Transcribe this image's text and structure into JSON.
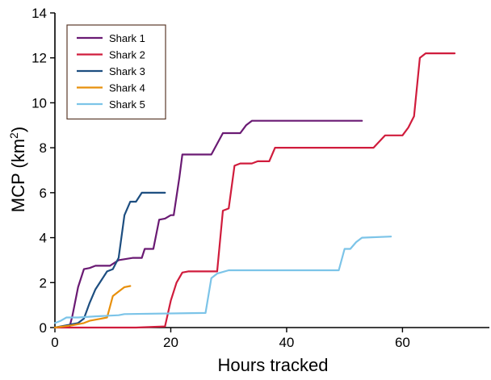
{
  "chart_data": {
    "type": "line",
    "title": "",
    "xlabel": "Hours tracked",
    "ylabel": "MCP (km²)",
    "ylabel_main": "MCP (km",
    "ylabel_sup": "2",
    "ylabel_close": ")",
    "xlim": [
      0,
      75
    ],
    "ylim": [
      0,
      14
    ],
    "xticks": [
      0,
      20,
      40,
      60
    ],
    "yticks": [
      0,
      2,
      4,
      6,
      8,
      10,
      12,
      14
    ],
    "grid": false,
    "legend_position": "top-left",
    "series": [
      {
        "name": "Shark 1",
        "color": "#6a1a73",
        "points": [
          [
            2.5,
            0
          ],
          [
            3,
            0.5
          ],
          [
            4,
            1.8
          ],
          [
            5,
            2.6
          ],
          [
            6,
            2.65
          ],
          [
            7,
            2.75
          ],
          [
            9.5,
            2.75
          ],
          [
            11,
            3.0
          ],
          [
            13.5,
            3.1
          ],
          [
            15,
            3.1
          ],
          [
            15.5,
            3.5
          ],
          [
            17,
            3.5
          ],
          [
            18,
            4.8
          ],
          [
            19,
            4.85
          ],
          [
            20,
            5.0
          ],
          [
            20.5,
            5.0
          ],
          [
            21.5,
            6.7
          ],
          [
            22,
            7.7
          ],
          [
            27,
            7.7
          ],
          [
            29,
            8.65
          ],
          [
            32,
            8.65
          ],
          [
            33,
            9.0
          ],
          [
            34,
            9.2
          ],
          [
            53,
            9.2
          ]
        ]
      },
      {
        "name": "Shark 2",
        "color": "#d01c3c",
        "points": [
          [
            0,
            0
          ],
          [
            14,
            0
          ],
          [
            19,
            0.05
          ],
          [
            20,
            1.2
          ],
          [
            21,
            2.0
          ],
          [
            22,
            2.45
          ],
          [
            23,
            2.5
          ],
          [
            28,
            2.5
          ],
          [
            29,
            5.2
          ],
          [
            30,
            5.3
          ],
          [
            31,
            7.2
          ],
          [
            32,
            7.3
          ],
          [
            34,
            7.3
          ],
          [
            35,
            7.4
          ],
          [
            37,
            7.4
          ],
          [
            38,
            8.0
          ],
          [
            55,
            8.0
          ],
          [
            57,
            8.55
          ],
          [
            60,
            8.55
          ],
          [
            61,
            8.9
          ],
          [
            62,
            9.4
          ],
          [
            63,
            12.0
          ],
          [
            64,
            12.2
          ],
          [
            69,
            12.2
          ]
        ]
      },
      {
        "name": "Shark 3",
        "color": "#1d4e80",
        "points": [
          [
            0,
            0
          ],
          [
            4,
            0.2
          ],
          [
            5,
            0.4
          ],
          [
            6,
            1.1
          ],
          [
            7,
            1.7
          ],
          [
            8,
            2.1
          ],
          [
            9,
            2.5
          ],
          [
            10,
            2.6
          ],
          [
            11,
            3.1
          ],
          [
            12,
            5.0
          ],
          [
            13,
            5.6
          ],
          [
            14,
            5.6
          ],
          [
            15,
            6.0
          ],
          [
            19,
            6.0
          ]
        ]
      },
      {
        "name": "Shark 4",
        "color": "#e8900c",
        "points": [
          [
            0,
            0
          ],
          [
            3,
            0.1
          ],
          [
            5,
            0.2
          ],
          [
            6,
            0.3
          ],
          [
            8,
            0.4
          ],
          [
            9,
            0.45
          ],
          [
            10,
            1.4
          ],
          [
            11,
            1.6
          ],
          [
            12,
            1.8
          ],
          [
            13,
            1.85
          ]
        ]
      },
      {
        "name": "Shark 5",
        "color": "#7cc4e8",
        "points": [
          [
            0,
            0.2
          ],
          [
            1,
            0.3
          ],
          [
            2,
            0.45
          ],
          [
            4,
            0.45
          ],
          [
            7,
            0.5
          ],
          [
            11,
            0.55
          ],
          [
            12,
            0.6
          ],
          [
            26,
            0.65
          ],
          [
            27,
            2.2
          ],
          [
            28,
            2.4
          ],
          [
            30,
            2.55
          ],
          [
            49,
            2.55
          ],
          [
            50,
            3.5
          ],
          [
            51,
            3.5
          ],
          [
            52,
            3.8
          ],
          [
            53,
            4.0
          ],
          [
            58,
            4.05
          ]
        ]
      }
    ]
  }
}
